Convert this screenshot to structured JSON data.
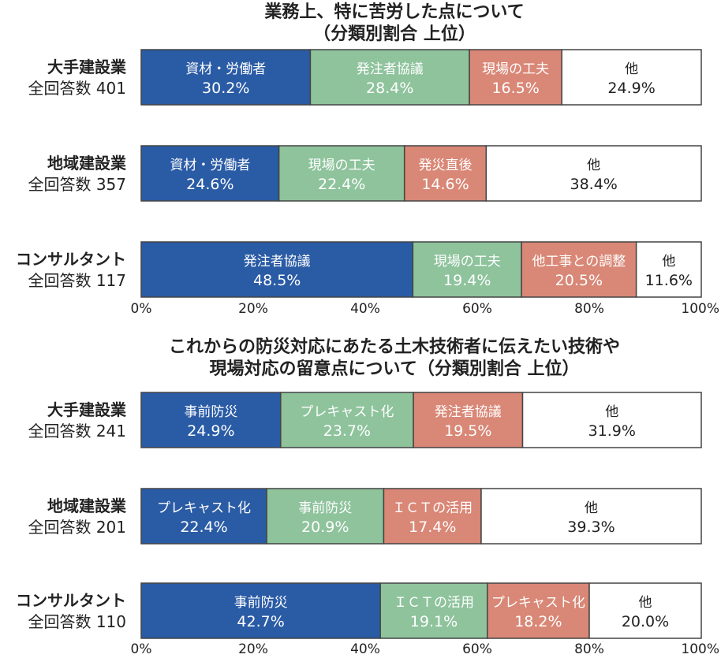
{
  "colors": {
    "blue": "#2a5ba5",
    "green": "#8ec39c",
    "salmon": "#d98776",
    "white": "#ffffff",
    "border": "#444444"
  },
  "chart_data": [
    {
      "type": "bar",
      "orientation": "horizontal-stacked-100",
      "title_lines": [
        "業務上、特に苦労した点について",
        "（分類別割合 上位）"
      ],
      "xlim": [
        0,
        100
      ],
      "xticks": [
        "0%",
        "20%",
        "40%",
        "60%",
        "80%",
        "100%"
      ],
      "rows": [
        {
          "name": "大手建設業",
          "count_label": "全回答数 401",
          "segments": [
            {
              "label": "資材・労働者",
              "value": 30.2,
              "value_label": "30.2%",
              "color": "blue"
            },
            {
              "label": "発注者協議",
              "value": 28.4,
              "value_label": "28.4%",
              "color": "green"
            },
            {
              "label": "現場の工夫",
              "value": 16.5,
              "value_label": "16.5%",
              "color": "salmon"
            },
            {
              "label": "他",
              "value": 24.9,
              "value_label": "24.9%",
              "color": "white"
            }
          ]
        },
        {
          "name": "地域建設業",
          "count_label": "全回答数 357",
          "segments": [
            {
              "label": "資材・労働者",
              "value": 24.6,
              "value_label": "24.6%",
              "color": "blue"
            },
            {
              "label": "現場の工夫",
              "value": 22.4,
              "value_label": "22.4%",
              "color": "green"
            },
            {
              "label": "発災直後",
              "value": 14.6,
              "value_label": "14.6%",
              "color": "salmon"
            },
            {
              "label": "他",
              "value": 38.4,
              "value_label": "38.4%",
              "color": "white"
            }
          ]
        },
        {
          "name": "コンサルタント",
          "count_label": "全回答数 117",
          "segments": [
            {
              "label": "発注者協議",
              "value": 48.5,
              "value_label": "48.5%",
              "color": "blue"
            },
            {
              "label": "現場の工夫",
              "value": 19.4,
              "value_label": "19.4%",
              "color": "green"
            },
            {
              "label": "他工事との調整",
              "value": 20.5,
              "value_label": "20.5%",
              "color": "salmon"
            },
            {
              "label": "他",
              "value": 11.6,
              "value_label": "11.6%",
              "color": "white"
            }
          ]
        }
      ]
    },
    {
      "type": "bar",
      "orientation": "horizontal-stacked-100",
      "title_lines": [
        "これからの防災対応にあたる土木技術者に伝えたい技術や",
        "現場対応の留意点について（分類別割合 上位）"
      ],
      "xlim": [
        0,
        100
      ],
      "xticks": [
        "0%",
        "20%",
        "40%",
        "60%",
        "80%",
        "100%"
      ],
      "rows": [
        {
          "name": "大手建設業",
          "count_label": "全回答数 241",
          "segments": [
            {
              "label": "事前防災",
              "value": 24.9,
              "value_label": "24.9%",
              "color": "blue"
            },
            {
              "label": "プレキャスト化",
              "value": 23.7,
              "value_label": "23.7%",
              "color": "green"
            },
            {
              "label": "発注者協議",
              "value": 19.5,
              "value_label": "19.5%",
              "color": "salmon"
            },
            {
              "label": "他",
              "value": 31.9,
              "value_label": "31.9%",
              "color": "white"
            }
          ]
        },
        {
          "name": "地域建設業",
          "count_label": "全回答数 201",
          "segments": [
            {
              "label": "プレキャスト化",
              "value": 22.4,
              "value_label": "22.4%",
              "color": "blue"
            },
            {
              "label": "事前防災",
              "value": 20.9,
              "value_label": "20.9%",
              "color": "green"
            },
            {
              "label": "ＩＣＴの活用",
              "value": 17.4,
              "value_label": "17.4%",
              "color": "salmon"
            },
            {
              "label": "他",
              "value": 39.3,
              "value_label": "39.3%",
              "color": "white"
            }
          ]
        },
        {
          "name": "コンサルタント",
          "count_label": "全回答数 110",
          "segments": [
            {
              "label": "事前防災",
              "value": 42.7,
              "value_label": "42.7%",
              "color": "blue"
            },
            {
              "label": "ＩＣＴの活用",
              "value": 19.1,
              "value_label": "19.1%",
              "color": "green"
            },
            {
              "label": "プレキャスト化",
              "value": 18.2,
              "value_label": "18.2%",
              "color": "salmon"
            },
            {
              "label": "他",
              "value": 20.0,
              "value_label": "20.0%",
              "color": "white"
            }
          ]
        }
      ]
    }
  ]
}
